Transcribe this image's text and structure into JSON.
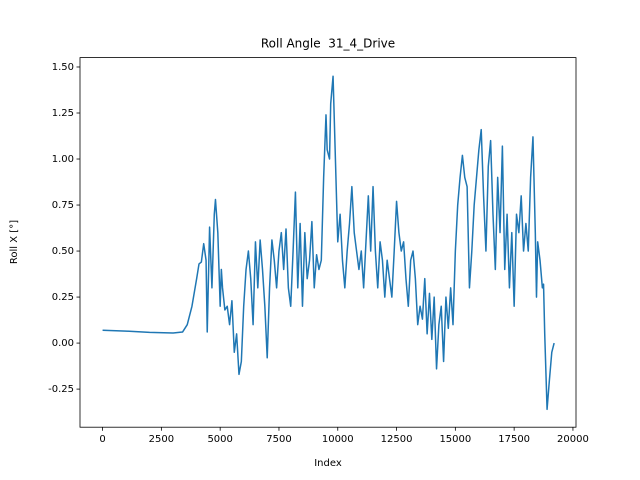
{
  "chart_data": {
    "type": "line",
    "title": "Roll Angle  31_4_Drive",
    "x_label": "Index",
    "y_label": "Roll X [°]",
    "color": "#1f77b4",
    "x": [
      0,
      1000,
      2000,
      3000,
      3400,
      3600,
      3800,
      4000,
      4100,
      4200,
      4300,
      4400,
      4450,
      4550,
      4650,
      4750,
      4800,
      4900,
      5000,
      5050,
      5100,
      5200,
      5300,
      5400,
      5500,
      5600,
      5700,
      5800,
      5900,
      6000,
      6100,
      6200,
      6300,
      6400,
      6500,
      6600,
      6700,
      6800,
      6900,
      7000,
      7100,
      7200,
      7300,
      7400,
      7500,
      7600,
      7700,
      7800,
      7900,
      8000,
      8100,
      8200,
      8300,
      8400,
      8500,
      8600,
      8700,
      8800,
      8900,
      9000,
      9100,
      9200,
      9300,
      9400,
      9500,
      9550,
      9650,
      9700,
      9800,
      9900,
      10000,
      10100,
      10200,
      10300,
      10400,
      10500,
      10600,
      10700,
      10800,
      10900,
      11000,
      11100,
      11200,
      11300,
      11400,
      11500,
      11600,
      11700,
      11800,
      11900,
      12000,
      12100,
      12200,
      12300,
      12400,
      12500,
      12600,
      12700,
      12800,
      12900,
      13000,
      13100,
      13200,
      13300,
      13400,
      13500,
      13600,
      13700,
      13800,
      13900,
      14000,
      14100,
      14200,
      14300,
      14400,
      14500,
      14600,
      14700,
      14800,
      14900,
      15000,
      15100,
      15200,
      15300,
      15400,
      15500,
      15600,
      15700,
      15800,
      15900,
      16000,
      16100,
      16200,
      16300,
      16400,
      16500,
      16600,
      16700,
      16800,
      16900,
      17000,
      17100,
      17200,
      17300,
      17400,
      17500,
      17600,
      17700,
      17800,
      17900,
      18000,
      18100,
      18200,
      18300,
      18400,
      18450,
      18500,
      18600,
      18700,
      18750,
      18800,
      18900,
      19000,
      19100,
      19200
    ],
    "values": [
      0.07,
      0.065,
      0.058,
      0.055,
      0.06,
      0.1,
      0.2,
      0.35,
      0.43,
      0.44,
      0.54,
      0.45,
      0.06,
      0.63,
      0.3,
      0.7,
      0.78,
      0.6,
      0.2,
      0.4,
      0.3,
      0.18,
      0.2,
      0.1,
      0.23,
      -0.05,
      0.05,
      -0.17,
      -0.1,
      0.2,
      0.4,
      0.5,
      0.35,
      0.1,
      0.55,
      0.3,
      0.56,
      0.4,
      0.2,
      -0.08,
      0.3,
      0.56,
      0.45,
      0.3,
      0.5,
      0.6,
      0.4,
      0.62,
      0.3,
      0.2,
      0.5,
      0.82,
      0.3,
      0.65,
      0.2,
      0.6,
      0.35,
      0.45,
      0.66,
      0.3,
      0.48,
      0.4,
      0.45,
      0.9,
      1.24,
      1.05,
      1.0,
      1.3,
      1.45,
      1.0,
      0.55,
      0.7,
      0.45,
      0.3,
      0.5,
      0.65,
      0.85,
      0.6,
      0.5,
      0.4,
      0.5,
      0.3,
      0.55,
      0.8,
      0.5,
      0.85,
      0.5,
      0.3,
      0.55,
      0.45,
      0.25,
      0.45,
      0.35,
      0.25,
      0.5,
      0.77,
      0.6,
      0.5,
      0.55,
      0.35,
      0.2,
      0.45,
      0.5,
      0.35,
      0.1,
      0.2,
      0.13,
      0.35,
      0.05,
      0.27,
      0.02,
      0.25,
      -0.14,
      0.1,
      0.2,
      -0.1,
      0.25,
      0.08,
      0.3,
      0.1,
      0.5,
      0.75,
      0.9,
      1.02,
      0.9,
      0.85,
      0.3,
      0.5,
      0.75,
      0.9,
      1.05,
      1.16,
      0.8,
      0.5,
      0.96,
      1.1,
      0.7,
      0.4,
      0.9,
      0.6,
      1.07,
      0.4,
      0.7,
      0.3,
      0.6,
      0.2,
      0.7,
      0.6,
      0.8,
      0.5,
      0.65,
      0.5,
      0.9,
      1.12,
      0.6,
      0.25,
      0.55,
      0.45,
      0.3,
      0.32,
      0.05,
      -0.36,
      -0.2,
      -0.05,
      0.0
    ],
    "xlim": [
      -960,
      20130
    ],
    "ylim": [
      -0.457,
      1.551
    ],
    "xticks": [
      0,
      2500,
      5000,
      7500,
      10000,
      12500,
      15000,
      17500,
      20000
    ],
    "yticks": [
      -0.25,
      {
        "value": 0,
        "label": "0.00"
      },
      0.25,
      {
        "value": 0.5,
        "label": "0.50"
      },
      0.75,
      {
        "value": 1,
        "label": "1.00"
      },
      1.25,
      {
        "value": 1.5,
        "label": "1.50"
      }
    ]
  }
}
